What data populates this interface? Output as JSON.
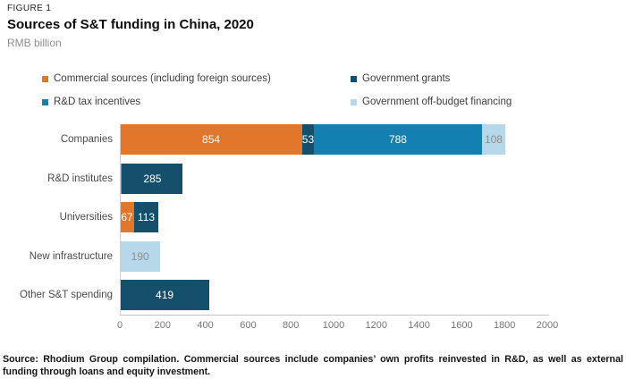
{
  "header": {
    "figure_label": "FIGURE 1",
    "title": "Sources of S&T funding in China, 2020",
    "subtitle": "RMB billion"
  },
  "chart_data": {
    "type": "bar",
    "orientation": "horizontal",
    "stacked": true,
    "title": "Sources of S&T funding in China, 2020",
    "units": "RMB billion",
    "categories": [
      "Companies",
      "R&D institutes",
      "Universities",
      "New infrastructure",
      "Other S&T spending"
    ],
    "series": [
      {
        "name": "Commercial sources (including foreign sources)",
        "color": "#E2772C",
        "label_color": "#FFFFFF",
        "values": [
          854,
          10,
          67,
          0,
          0
        ],
        "labels": [
          "854",
          "",
          "67",
          "",
          ""
        ]
      },
      {
        "name": "Government grants",
        "color": "#14506C",
        "label_color": "#FFFFFF",
        "values": [
          53,
          285,
          113,
          0,
          419
        ],
        "labels": [
          "53",
          "285",
          "113",
          "",
          "419"
        ]
      },
      {
        "name": "R&D tax incentives",
        "color": "#1480B2",
        "label_color": "#FFFFFF",
        "values": [
          788,
          0,
          0,
          0,
          0
        ],
        "labels": [
          "788",
          "",
          "",
          "",
          ""
        ]
      },
      {
        "name": "Government off-budget financing",
        "color": "#B7D8EB",
        "label_color": "#8D8D8D",
        "values": [
          108,
          0,
          0,
          190,
          0
        ],
        "labels": [
          "108",
          "",
          "",
          "190",
          ""
        ]
      }
    ],
    "xlim": [
      0,
      2000
    ],
    "xticks": [
      0,
      200,
      400,
      600,
      800,
      1000,
      1200,
      1400,
      1600,
      1800,
      2000
    ],
    "grid": false,
    "legend_position": "top"
  },
  "footer": {
    "source": "Source: Rhodium Group compilation. Commercial sources include companies’ own profits reinvested in R&D, as well as external funding through loans and equity investment."
  }
}
